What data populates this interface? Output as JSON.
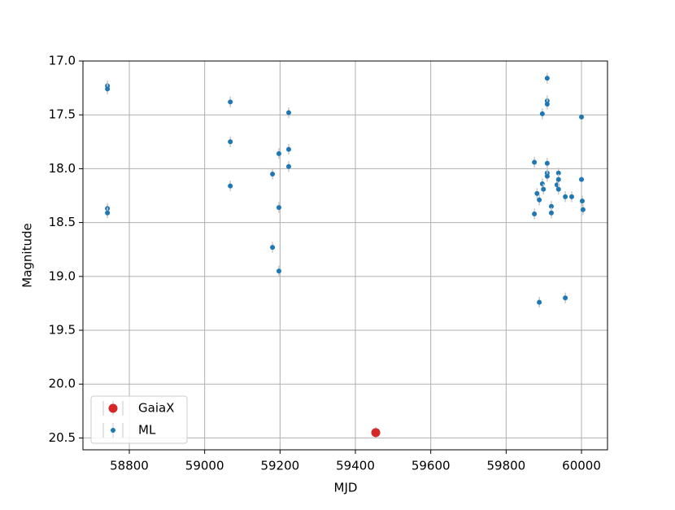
{
  "chart_data": {
    "type": "errorbar",
    "xlabel": "MJD",
    "ylabel": "Magnitude",
    "xlim": [
      58677,
      60069
    ],
    "ylim": [
      20.61,
      17.0
    ],
    "xticks": [
      58800,
      59000,
      59200,
      59400,
      59600,
      59800,
      60000
    ],
    "yticks": [
      {
        "value": 17,
        "label": "17.0"
      },
      17.5,
      {
        "value": 18,
        "label": "18.0"
      },
      18.5,
      {
        "value": 19,
        "label": "19.0"
      },
      19.5,
      {
        "value": 20,
        "label": "20.0"
      },
      20.5
    ],
    "grid": true,
    "legend": "lower left",
    "errorbar_color": "#c8c8c8",
    "series": [
      {
        "name": "GaiaX",
        "color": "#d62728",
        "marker_size": 5.5,
        "yerr": 0.05,
        "x": [
          59454
        ],
        "values": [
          20.45
        ]
      },
      {
        "name": "ML",
        "color": "#1f77b4",
        "marker_size": 3,
        "yerr": 0.05,
        "x": [
          58742,
          58742,
          58742,
          58742,
          59068,
          59068,
          59068,
          59180,
          59180,
          59197,
          59197,
          59197,
          59223,
          59223,
          59223,
          59875,
          59875,
          59882,
          59888,
          59888,
          59896,
          59896,
          59899,
          59909,
          59909,
          59909,
          59909,
          59909,
          59909,
          59920,
          59920,
          59935,
          59939,
          59939,
          59939,
          59957,
          59957,
          59974,
          60000,
          60000,
          60002,
          60004
        ],
        "values": [
          17.23,
          17.26,
          18.37,
          18.41,
          17.38,
          17.75,
          18.16,
          18.05,
          18.73,
          17.86,
          18.36,
          18.95,
          17.48,
          17.82,
          17.98,
          18.42,
          17.94,
          18.23,
          18.29,
          19.24,
          17.49,
          18.14,
          18.19,
          17.16,
          17.37,
          17.4,
          17.95,
          18.04,
          18.07,
          18.35,
          18.41,
          18.15,
          18.04,
          18.1,
          18.19,
          18.26,
          19.2,
          18.26,
          17.52,
          18.1,
          18.3,
          18.38
        ]
      }
    ]
  }
}
